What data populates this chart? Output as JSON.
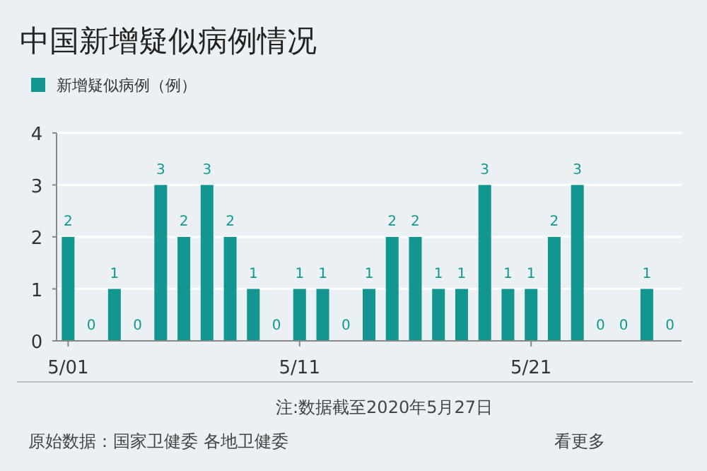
{
  "chart_data": {
    "type": "bar",
    "title": "中国新增疑似病例情况",
    "categories": [
      "5/01",
      null,
      null,
      null,
      null,
      null,
      null,
      null,
      null,
      null,
      "5/11",
      null,
      null,
      null,
      null,
      null,
      null,
      null,
      null,
      null,
      "5/21",
      null,
      null,
      null,
      null,
      null,
      null
    ],
    "series": [
      {
        "name": "新增疑似病例（例）",
        "color": "#13968f",
        "values": [
          2,
          0,
          1,
          0,
          3,
          2,
          3,
          2,
          1,
          0,
          1,
          1,
          0,
          1,
          2,
          2,
          1,
          1,
          3,
          1,
          1,
          2,
          3,
          0,
          0,
          1,
          0
        ]
      }
    ],
    "ylim": [
      0,
      4
    ],
    "yticks": [
      0,
      1,
      2,
      3,
      4
    ],
    "grid": "y",
    "legend": "top left",
    "data_labels": true,
    "annotations": [
      "注:数据截至2020年5月27日",
      "原始数据：国家卫健委 各地卫健委",
      "看更多"
    ]
  }
}
